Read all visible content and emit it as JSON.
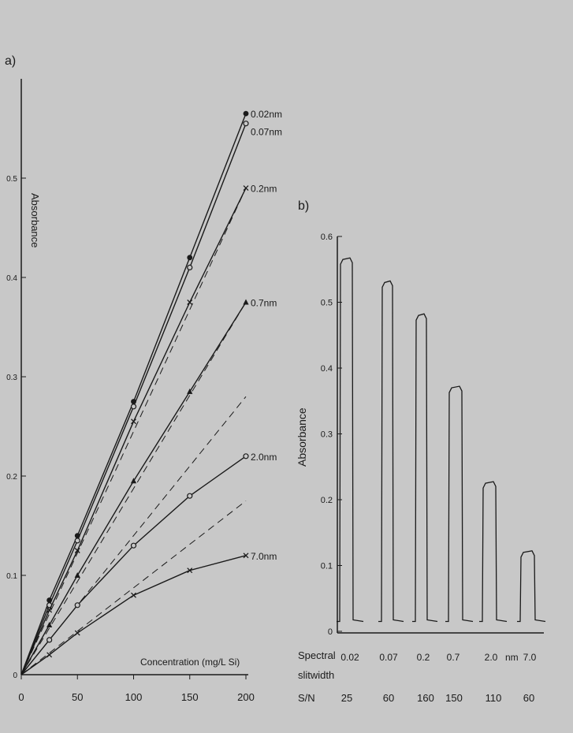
{
  "chart_data": [
    {
      "type": "line",
      "panel_label": "a)",
      "xlabel": "Concentration (mg/L Si)",
      "ylabel": "Absorbance",
      "xlim": [
        0,
        200
      ],
      "ylim": [
        0,
        0.6
      ],
      "xticks": [
        "0",
        "50",
        "100",
        "150",
        "200"
      ],
      "yticks": [
        "0",
        "0.1",
        "0.2",
        "0.3",
        "0.4",
        "0.5"
      ],
      "grid": false,
      "x": [
        0,
        25,
        50,
        100,
        150,
        200
      ],
      "series": [
        {
          "name": "0.02nm",
          "marker": "dot",
          "values": [
            0,
            0.075,
            0.14,
            0.275,
            0.42,
            0.565
          ]
        },
        {
          "name": "0.07nm",
          "marker": "circle",
          "values": [
            0,
            0.07,
            0.135,
            0.27,
            0.41,
            0.555
          ]
        },
        {
          "name": "0.2nm",
          "marker": "x",
          "values": [
            0,
            0.065,
            0.125,
            0.255,
            0.375,
            0.49
          ]
        },
        {
          "name": "0.7nm",
          "marker": "triangle",
          "values": [
            0,
            0.05,
            0.1,
            0.195,
            0.285,
            0.375
          ]
        },
        {
          "name": "2.0nm",
          "marker": "circle",
          "values": [
            0,
            0.035,
            0.07,
            0.13,
            0.18,
            0.22
          ]
        },
        {
          "name": "7.0nm",
          "marker": "x",
          "values": [
            0,
            0.02,
            0.042,
            0.08,
            0.105,
            0.12
          ]
        }
      ],
      "dashed_lines": [
        {
          "x": [
            0,
            200
          ],
          "y": [
            0,
            0.49
          ]
        },
        {
          "x": [
            0,
            200
          ],
          "y": [
            0,
            0.375
          ]
        },
        {
          "x": [
            0,
            200
          ],
          "y": [
            0,
            0.28
          ]
        },
        {
          "x": [
            0,
            200
          ],
          "y": [
            0,
            0.175
          ]
        }
      ]
    },
    {
      "type": "bar",
      "panel_label": "b)",
      "ylabel": "Absorbance",
      "ylim": [
        0,
        0.6
      ],
      "yticks": [
        "0",
        "0.1",
        "0.2",
        "0.3",
        "0.4",
        "0.5",
        "0.6"
      ],
      "row_labels": {
        "slit": [
          "Spectral",
          "slitwidth"
        ],
        "sn": "S/N",
        "unit": "nm"
      },
      "categories": [
        "0.02",
        "0.07",
        "0.2",
        "0.7",
        "2.0",
        "7.0"
      ],
      "values": [
        0.565,
        0.53,
        0.48,
        0.37,
        0.225,
        0.12
      ],
      "sn_values": [
        "25",
        "60",
        "160",
        "150",
        "110",
        "60"
      ]
    }
  ]
}
